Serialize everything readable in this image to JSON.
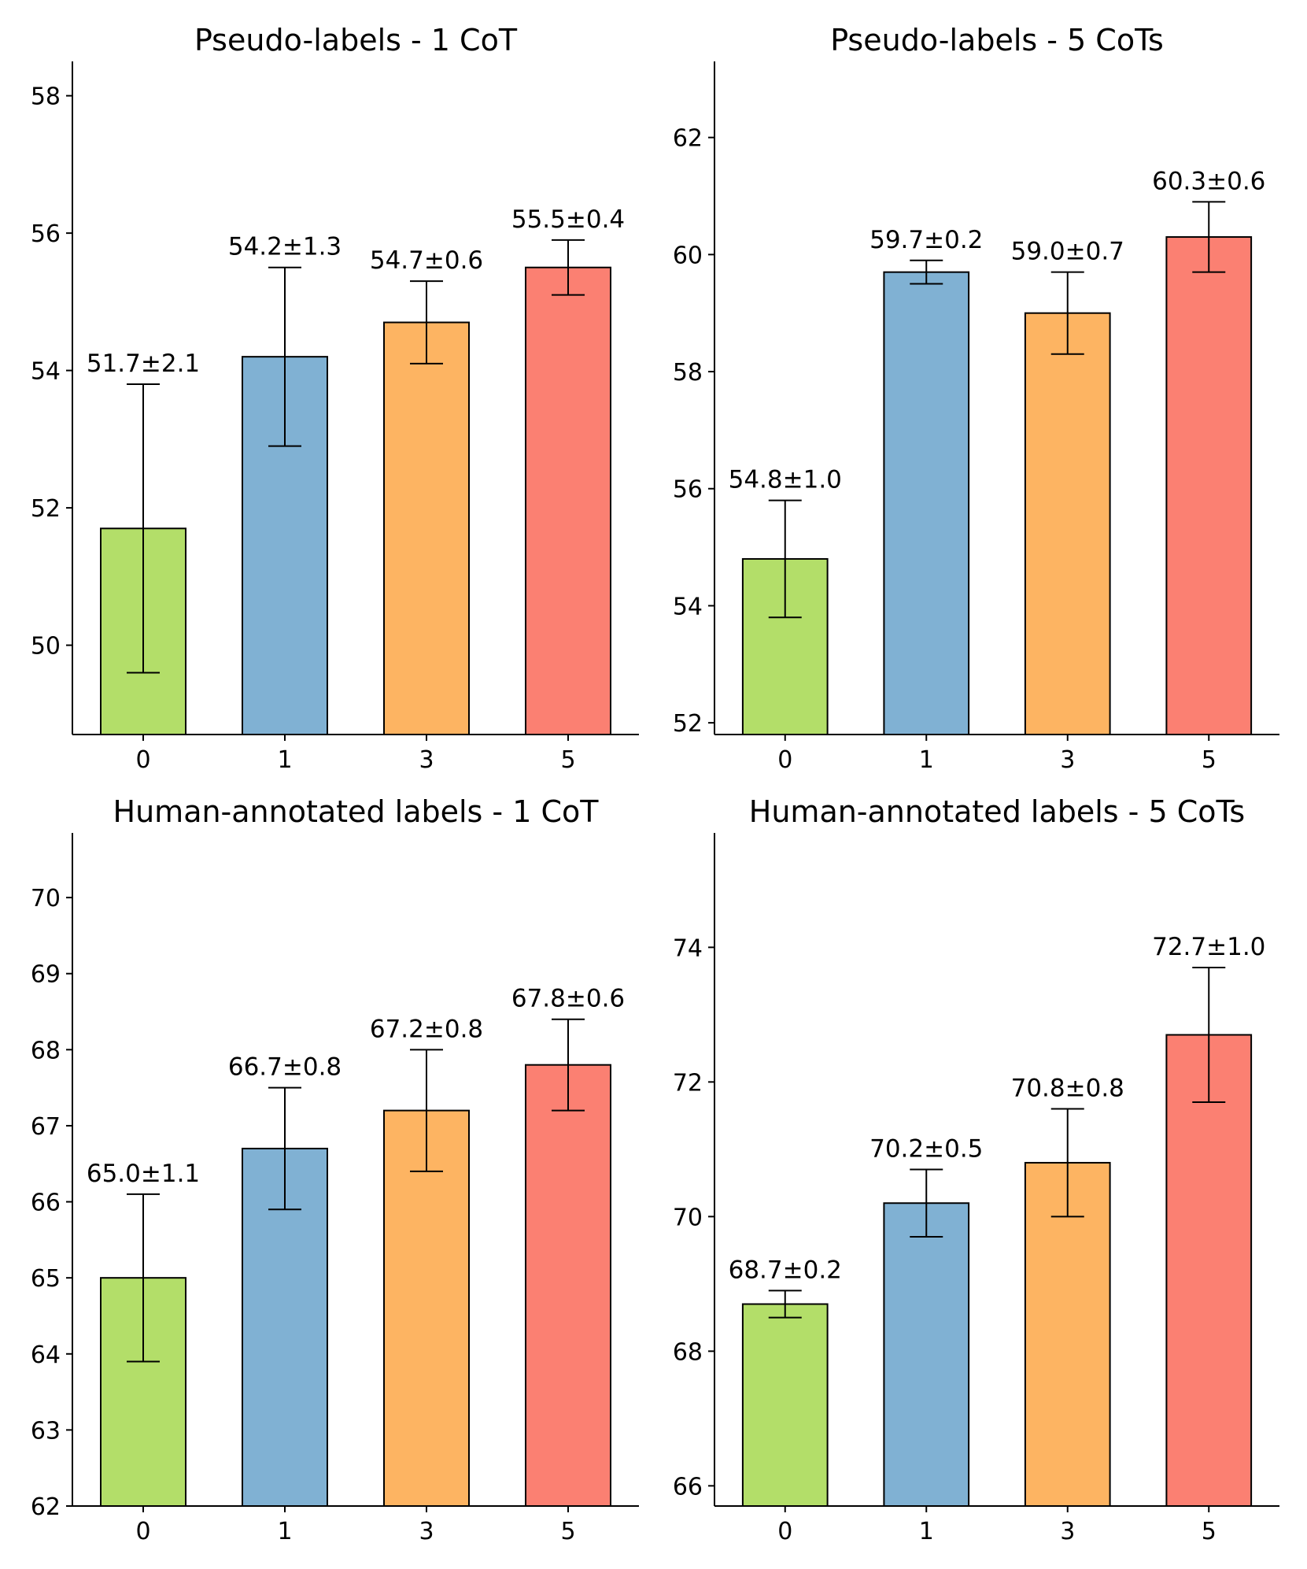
{
  "chart_data": [
    {
      "type": "bar",
      "title": "Pseudo-labels - 1 CoT",
      "categories": [
        "0",
        "1",
        "3",
        "5"
      ],
      "values": [
        51.7,
        54.2,
        54.7,
        55.5
      ],
      "errors": [
        2.1,
        1.3,
        0.6,
        0.4
      ],
      "labels": [
        "51.7±2.1",
        "54.2±1.3",
        "54.7±0.6",
        "55.5±0.4"
      ],
      "ylim": [
        48.7,
        58.5
      ],
      "yticks": [
        50,
        52,
        54,
        56,
        58
      ],
      "xlabel": "",
      "ylabel": ""
    },
    {
      "type": "bar",
      "title": "Pseudo-labels - 5 CoTs",
      "categories": [
        "0",
        "1",
        "3",
        "5"
      ],
      "values": [
        54.8,
        59.7,
        59.0,
        60.3
      ],
      "errors": [
        1.0,
        0.2,
        0.7,
        0.6
      ],
      "labels": [
        "54.8±1.0",
        "59.7±0.2",
        "59.0±0.7",
        "60.3±0.6"
      ],
      "ylim": [
        51.8,
        63.3
      ],
      "yticks": [
        52,
        54,
        56,
        58,
        60,
        62
      ],
      "xlabel": "",
      "ylabel": ""
    },
    {
      "type": "bar",
      "title": "Human-annotated labels - 1 CoT",
      "categories": [
        "0",
        "1",
        "3",
        "5"
      ],
      "values": [
        65.0,
        66.7,
        67.2,
        67.8
      ],
      "errors": [
        1.1,
        0.8,
        0.8,
        0.6
      ],
      "labels": [
        "65.0±1.1",
        "66.7±0.8",
        "67.2±0.8",
        "67.8±0.6"
      ],
      "ylim": [
        62,
        70.85
      ],
      "yticks": [
        62,
        63,
        64,
        65,
        66,
        67,
        68,
        69,
        70
      ],
      "xlabel": "",
      "ylabel": ""
    },
    {
      "type": "bar",
      "title": "Human-annotated labels - 5 CoTs",
      "categories": [
        "0",
        "1",
        "3",
        "5"
      ],
      "values": [
        68.7,
        70.2,
        70.8,
        72.7
      ],
      "errors": [
        0.2,
        0.5,
        0.8,
        1.0
      ],
      "labels": [
        "68.7±0.2",
        "70.2±0.5",
        "70.8±0.8",
        "72.7±1.0"
      ],
      "ylim": [
        65.7,
        75.7
      ],
      "yticks": [
        66,
        68,
        70,
        72,
        74
      ],
      "xlabel": "",
      "ylabel": ""
    }
  ],
  "colors": [
    "#b3de69",
    "#80b1d3",
    "#fdb462",
    "#fb8072"
  ]
}
